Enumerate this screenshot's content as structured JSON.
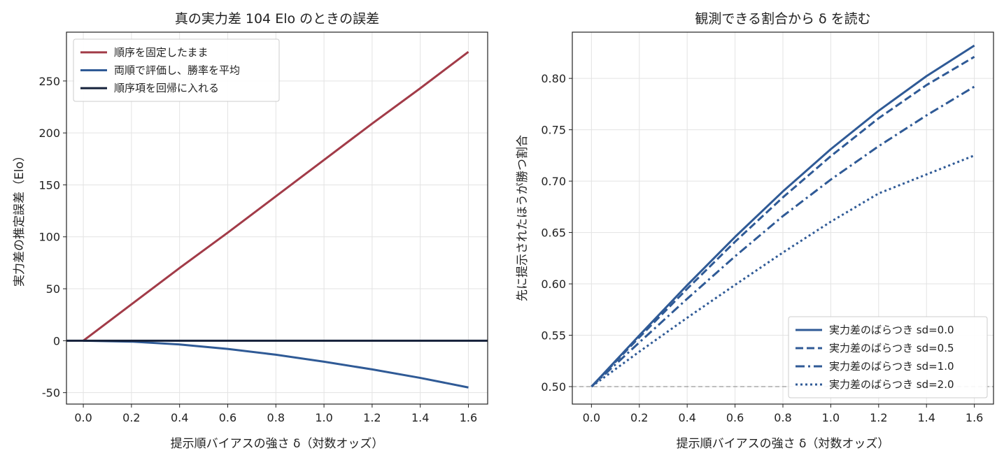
{
  "colors": {
    "red": "#a23b48",
    "blue": "#2f5a96",
    "navy": "#15213a",
    "grid": "#e3e3e3",
    "ref": "#999999"
  },
  "chart_data": [
    {
      "type": "line",
      "title": "真の実力差 104 Elo のときの誤差",
      "xlabel": "提示順バイアスの強さ δ（対数オッズ）",
      "ylabel": "実力差の推定誤差（Elo）",
      "xlim": [
        -0.07,
        1.68
      ],
      "ylim": [
        -61,
        297
      ],
      "xticks": [
        0.0,
        0.2,
        0.4,
        0.6,
        0.8,
        1.0,
        1.2,
        1.4,
        1.6
      ],
      "xtick_labels": [
        "0.0",
        "0.2",
        "0.4",
        "0.6",
        "0.8",
        "1.0",
        "1.2",
        "1.4",
        "1.6"
      ],
      "yticks": [
        -50,
        0,
        50,
        100,
        150,
        200,
        250
      ],
      "ytick_labels": [
        "-50",
        "0",
        "50",
        "100",
        "150",
        "200",
        "250"
      ],
      "grid": true,
      "legend_position": "top-left",
      "series": [
        {
          "name": "順序を固定したまま",
          "color": "#a23b48",
          "dash": "solid",
          "x": [
            0.0,
            0.2,
            0.4,
            0.6,
            0.8,
            1.0,
            1.2,
            1.4,
            1.6
          ],
          "y": [
            0,
            35,
            70,
            104,
            139,
            174,
            209,
            243,
            278
          ]
        },
        {
          "name": "両順で評価し、勝率を平均",
          "color": "#2f5a96",
          "dash": "solid",
          "x": [
            0.0,
            0.2,
            0.4,
            0.6,
            0.8,
            1.0,
            1.2,
            1.4,
            1.6
          ],
          "y": [
            0,
            -0.9,
            -3.6,
            -7.9,
            -13.5,
            -20.2,
            -27.6,
            -35.8,
            -45
          ]
        },
        {
          "name": "順序項を回帰に入れる",
          "color": "#15213a",
          "dash": "solid",
          "x": [
            -0.07,
            1.68
          ],
          "y": [
            0,
            0
          ]
        }
      ]
    },
    {
      "type": "line",
      "title": "観測できる割合から δ を読む",
      "xlabel": "提示順バイアスの強さ δ（対数オッズ）",
      "ylabel": "先に提示されたほうが勝つ割合",
      "xlim": [
        -0.08,
        1.68
      ],
      "ylim": [
        0.483,
        0.845
      ],
      "xticks": [
        0.0,
        0.2,
        0.4,
        0.6,
        0.8,
        1.0,
        1.2,
        1.4,
        1.6
      ],
      "xtick_labels": [
        "0.0",
        "0.2",
        "0.4",
        "0.6",
        "0.8",
        "1.0",
        "1.2",
        "1.4",
        "1.6"
      ],
      "yticks": [
        0.5,
        0.55,
        0.6,
        0.65,
        0.7,
        0.75,
        0.8
      ],
      "ytick_labels": [
        "0.50",
        "0.55",
        "0.60",
        "0.65",
        "0.70",
        "0.75",
        "0.80"
      ],
      "grid": true,
      "reference_line_y": 0.5,
      "legend_position": "bottom-right",
      "series": [
        {
          "name": "実力差のばらつき sd=0.0",
          "color": "#2f5a96",
          "dash": "solid",
          "x": [
            0.0,
            0.2,
            0.4,
            0.6,
            0.8,
            1.0,
            1.2,
            1.4,
            1.6
          ],
          "y": [
            0.5,
            0.5498,
            0.5987,
            0.6457,
            0.69,
            0.7311,
            0.7685,
            0.8022,
            0.832
          ]
        },
        {
          "name": "実力差のばらつき sd=0.5",
          "color": "#2f5a96",
          "dash": "dash",
          "x": [
            0.0,
            0.2,
            0.4,
            0.6,
            0.8,
            1.0,
            1.2,
            1.4,
            1.6
          ],
          "y": [
            0.5,
            0.548,
            0.5952,
            0.641,
            0.6842,
            0.7243,
            0.7612,
            0.7935,
            0.821
          ]
        },
        {
          "name": "実力差のばらつき sd=1.0",
          "color": "#2f5a96",
          "dash": "dashdot",
          "x": [
            0.0,
            0.2,
            0.4,
            0.6,
            0.8,
            1.0,
            1.2,
            1.4,
            1.6
          ],
          "y": [
            0.5,
            0.543,
            0.5855,
            0.6268,
            0.666,
            0.7015,
            0.734,
            0.764,
            0.792
          ]
        },
        {
          "name": "実力差のばらつき sd=2.0",
          "color": "#2f5a96",
          "dash": "dot",
          "x": [
            0.0,
            0.2,
            0.4,
            0.6,
            0.8,
            1.0,
            1.2,
            1.4,
            1.6
          ],
          "y": [
            0.5,
            0.534,
            0.567,
            0.599,
            0.6305,
            0.6605,
            0.688,
            0.7065,
            0.725
          ]
        }
      ]
    }
  ]
}
